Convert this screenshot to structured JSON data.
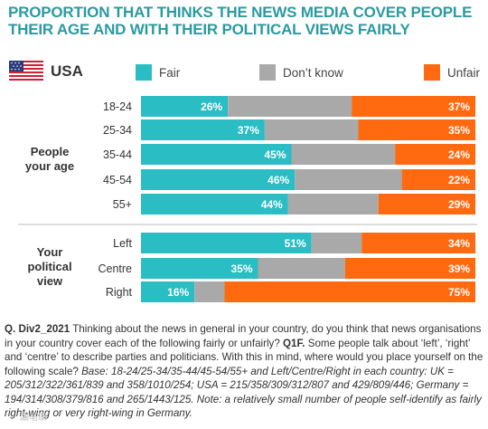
{
  "title": "PROPORTION THAT THINKS THE NEWS MEDIA COVER PEOPLE THEIR AGE AND WITH THEIR POLITICAL VIEWS FAIRLY",
  "country": "USA",
  "legend": [
    {
      "label": "Fair",
      "color": "#2abdc4"
    },
    {
      "label": "Don’t know",
      "color": "#a9a9a9"
    },
    {
      "label": "Unfair",
      "color": "#ff6a10"
    }
  ],
  "groups": [
    {
      "label_lines": [
        "People",
        "your age"
      ]
    },
    {
      "label_lines": [
        "Your",
        "political",
        "view"
      ]
    }
  ],
  "chart_data": {
    "type": "bar",
    "stacked": true,
    "orientation": "horizontal",
    "title": "PROPORTION THAT THINKS THE NEWS MEDIA COVER PEOPLE THEIR AGE AND WITH THEIR POLITICAL VIEWS FAIRLY",
    "categories": [
      "18-24",
      "25-34",
      "35-44",
      "45-54",
      "55+",
      "Left",
      "Centre",
      "Right"
    ],
    "category_groups": [
      {
        "name": "People your age",
        "categories": [
          "18-24",
          "25-34",
          "35-44",
          "45-54",
          "55+"
        ]
      },
      {
        "name": "Your political view",
        "categories": [
          "Left",
          "Centre",
          "Right"
        ]
      }
    ],
    "series": [
      {
        "name": "Fair",
        "values": [
          26,
          37,
          45,
          46,
          44,
          51,
          35,
          16
        ]
      },
      {
        "name": "Don’t know",
        "values": [
          37,
          28,
          31,
          32,
          27,
          15,
          26,
          9
        ]
      },
      {
        "name": "Unfair",
        "values": [
          37,
          35,
          24,
          22,
          29,
          34,
          39,
          75
        ]
      }
    ],
    "xlim": [
      0,
      100
    ],
    "value_unit": "%",
    "legend_position": "top",
    "grid": false
  },
  "note": {
    "q_code": "Q. Div2_2021",
    "question": " Thinking about the news in general in your country, do you think that news organisations in your country cover each of the following fairly or unfairly? ",
    "q_code2": "Q1F.",
    "question2": " Some people talk about ‘left’, ‘right’ and ‘centre’ to describe parties and politicians. With this in mind, where would you place yourself on the following scale? ",
    "base": "Base: 18-24/25-34/35-44/45-54/55+ and Left/Centre/Right in each country: UK = 205/312/322/361/839 and 358/1010/254; USA = 215/358/309/312/807 and 429/809/446; Germany = 194/314/308/379/816 and 265/1443/125. Note: a relatively small number of people self-identify as fairly right-wing or very right-wing in Germany."
  },
  "watermark": "漏笔康"
}
